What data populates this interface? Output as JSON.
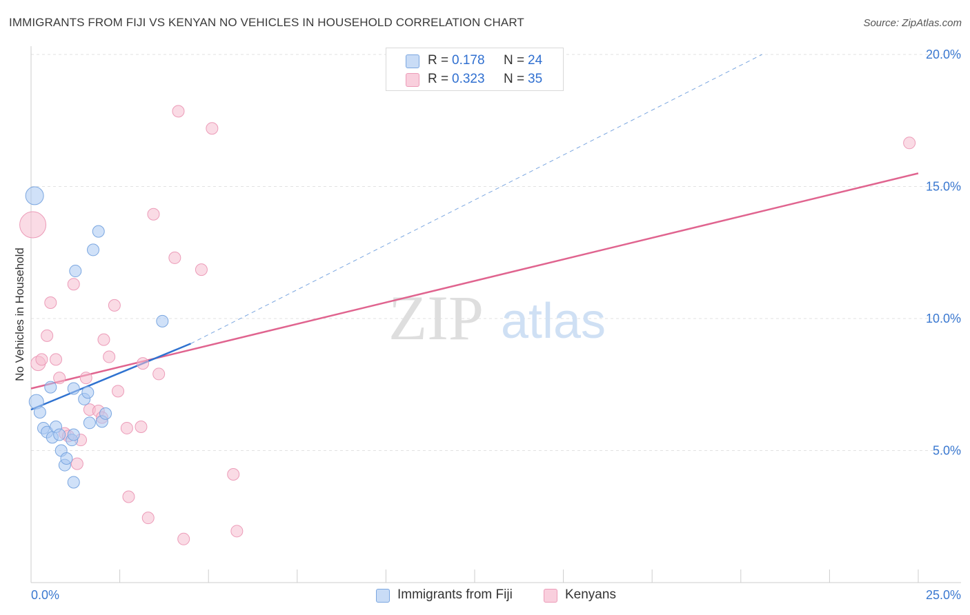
{
  "title": "IMMIGRANTS FROM FIJI VS KENYAN NO VEHICLES IN HOUSEHOLD CORRELATION CHART",
  "source": "Source: ZipAtlas.com",
  "watermark": {
    "zip": "ZIP",
    "atlas": "atlas"
  },
  "legend": {
    "r_label": "R =",
    "n_label": "N =",
    "series": [
      {
        "r": "0.178",
        "n": "24"
      },
      {
        "r": "0.323",
        "n": "35"
      }
    ]
  },
  "chart_data": {
    "type": "scatter",
    "title": "IMMIGRANTS FROM FIJI VS KENYAN NO VEHICLES IN HOUSEHOLD CORRELATION CHART",
    "xlabel": "",
    "ylabel": "No Vehicles in Household",
    "xlim": [
      0,
      25
    ],
    "ylim": [
      0,
      20.5
    ],
    "x_tick_labels": [
      "0.0%",
      "25.0%"
    ],
    "y_ticks": [
      5,
      10,
      15,
      20
    ],
    "y_tick_labels": [
      "5.0%",
      "10.0%",
      "15.0%",
      "20.0%"
    ],
    "grid": true,
    "legend_position": "top-center",
    "series": [
      {
        "name": "Immigrants from Fiji",
        "color": "#a9c8f2",
        "stroke": "#7aa6e0",
        "line_color": "#2f72d0",
        "trend": {
          "x": [
            0,
            4.5
          ],
          "y": [
            6.55,
            9.05
          ],
          "dashed_to": [
            20.6,
            20.0
          ]
        },
        "points": [
          {
            "x": 0.1,
            "y": 14.65,
            "s": 3
          },
          {
            "x": 0.15,
            "y": 6.85,
            "s": 2
          },
          {
            "x": 0.25,
            "y": 6.45,
            "s": 1
          },
          {
            "x": 0.35,
            "y": 5.85,
            "s": 1
          },
          {
            "x": 0.45,
            "y": 5.7,
            "s": 1
          },
          {
            "x": 0.55,
            "y": 7.4,
            "s": 1
          },
          {
            "x": 0.6,
            "y": 5.5,
            "s": 1
          },
          {
            "x": 0.7,
            "y": 5.9,
            "s": 1
          },
          {
            "x": 0.8,
            "y": 5.6,
            "s": 1
          },
          {
            "x": 0.85,
            "y": 5.0,
            "s": 1
          },
          {
            "x": 0.95,
            "y": 4.45,
            "s": 1
          },
          {
            "x": 1.0,
            "y": 4.7,
            "s": 1
          },
          {
            "x": 1.15,
            "y": 5.4,
            "s": 1
          },
          {
            "x": 1.2,
            "y": 3.8,
            "s": 1
          },
          {
            "x": 1.2,
            "y": 5.6,
            "s": 1
          },
          {
            "x": 1.25,
            "y": 11.8,
            "s": 1
          },
          {
            "x": 1.2,
            "y": 7.35,
            "s": 1
          },
          {
            "x": 1.5,
            "y": 6.95,
            "s": 1
          },
          {
            "x": 1.6,
            "y": 7.2,
            "s": 1
          },
          {
            "x": 1.65,
            "y": 6.05,
            "s": 1
          },
          {
            "x": 1.75,
            "y": 12.6,
            "s": 1
          },
          {
            "x": 1.9,
            "y": 13.3,
            "s": 1
          },
          {
            "x": 2.0,
            "y": 6.1,
            "s": 1
          },
          {
            "x": 2.1,
            "y": 6.4,
            "s": 1
          },
          {
            "x": 3.7,
            "y": 9.9,
            "s": 1
          }
        ]
      },
      {
        "name": "Kenyans",
        "color": "#f6bdd0",
        "stroke": "#ec9bb8",
        "line_color": "#e0648f",
        "trend": {
          "x": [
            0,
            25
          ],
          "y": [
            7.35,
            15.5
          ]
        },
        "points": [
          {
            "x": 0.05,
            "y": 13.55,
            "s": 4
          },
          {
            "x": 0.2,
            "y": 8.3,
            "s": 2
          },
          {
            "x": 0.3,
            "y": 8.45,
            "s": 1
          },
          {
            "x": 0.45,
            "y": 9.35,
            "s": 1
          },
          {
            "x": 0.55,
            "y": 10.6,
            "s": 1
          },
          {
            "x": 0.7,
            "y": 8.45,
            "s": 1
          },
          {
            "x": 0.8,
            "y": 7.75,
            "s": 1
          },
          {
            "x": 0.95,
            "y": 5.65,
            "s": 1
          },
          {
            "x": 1.05,
            "y": 5.55,
            "s": 1
          },
          {
            "x": 1.2,
            "y": 11.3,
            "s": 1
          },
          {
            "x": 1.3,
            "y": 4.5,
            "s": 1
          },
          {
            "x": 1.4,
            "y": 5.4,
            "s": 1
          },
          {
            "x": 1.55,
            "y": 7.75,
            "s": 1
          },
          {
            "x": 1.65,
            "y": 6.55,
            "s": 1
          },
          {
            "x": 1.9,
            "y": 6.5,
            "s": 1
          },
          {
            "x": 2.0,
            "y": 6.25,
            "s": 1
          },
          {
            "x": 2.05,
            "y": 9.2,
            "s": 1
          },
          {
            "x": 2.2,
            "y": 8.55,
            "s": 1
          },
          {
            "x": 2.35,
            "y": 10.5,
            "s": 1
          },
          {
            "x": 2.45,
            "y": 7.25,
            "s": 1
          },
          {
            "x": 2.7,
            "y": 5.85,
            "s": 1
          },
          {
            "x": 2.75,
            "y": 3.25,
            "s": 1
          },
          {
            "x": 3.1,
            "y": 5.9,
            "s": 1
          },
          {
            "x": 3.15,
            "y": 8.3,
            "s": 1
          },
          {
            "x": 3.3,
            "y": 2.45,
            "s": 1
          },
          {
            "x": 3.45,
            "y": 13.95,
            "s": 1
          },
          {
            "x": 3.6,
            "y": 7.9,
            "s": 1
          },
          {
            "x": 4.05,
            "y": 12.3,
            "s": 1
          },
          {
            "x": 4.15,
            "y": 17.85,
            "s": 1
          },
          {
            "x": 4.3,
            "y": 1.65,
            "s": 1
          },
          {
            "x": 4.8,
            "y": 11.85,
            "s": 1
          },
          {
            "x": 5.1,
            "y": 17.2,
            "s": 1
          },
          {
            "x": 5.7,
            "y": 4.1,
            "s": 1
          },
          {
            "x": 5.8,
            "y": 1.95,
            "s": 1
          },
          {
            "x": 24.75,
            "y": 16.65,
            "s": 1
          }
        ]
      }
    ]
  },
  "bottom_legend": [
    "Immigrants from Fiji",
    "Kenyans"
  ]
}
